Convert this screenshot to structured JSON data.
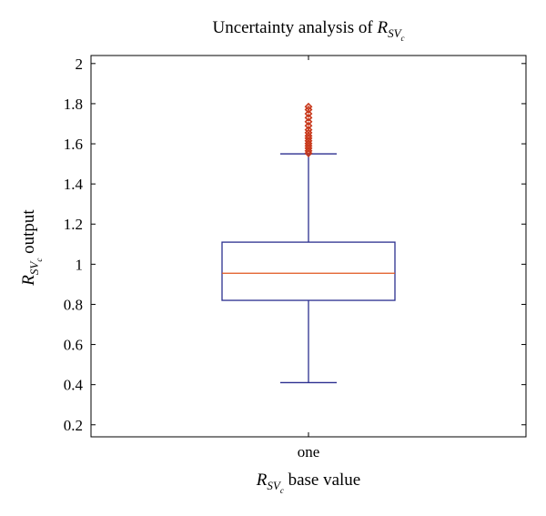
{
  "chart_data": {
    "type": "boxplot",
    "title": {
      "prefix": "Uncertainty analysis of ",
      "var": "R",
      "sub": "SV",
      "subsub": "c"
    },
    "xlabel": {
      "var": "R",
      "sub": "SV",
      "subsub": "c",
      "suffix": " base value"
    },
    "ylabel": {
      "var": "R",
      "sub": "SV",
      "subsub": "c",
      "suffix": " output"
    },
    "categories": [
      "one"
    ],
    "ylim": [
      0.14,
      2.04
    ],
    "yticks": [
      0.2,
      0.4,
      0.6,
      0.8,
      1,
      1.2,
      1.4,
      1.6,
      1.8,
      2
    ],
    "yticklabels": [
      "0.2",
      "0.4",
      "0.6",
      "0.8",
      "1",
      "1.2",
      "1.4",
      "1.6",
      "1.8",
      "2"
    ],
    "boxes": [
      {
        "category": "one",
        "whisker_low": 0.41,
        "q1": 0.82,
        "median": 0.955,
        "q3": 1.11,
        "whisker_high": 1.55,
        "outliers": [
          1.553,
          1.565,
          1.578,
          1.59,
          1.602,
          1.615,
          1.628,
          1.64,
          1.655,
          1.67,
          1.69,
          1.71,
          1.73,
          1.75,
          1.77,
          1.785
        ]
      }
    ],
    "grid": false,
    "colors": {
      "box": "#2b2f8f",
      "median": "#e0541c",
      "outlier": "#c8381b",
      "axes": "#000000"
    }
  }
}
